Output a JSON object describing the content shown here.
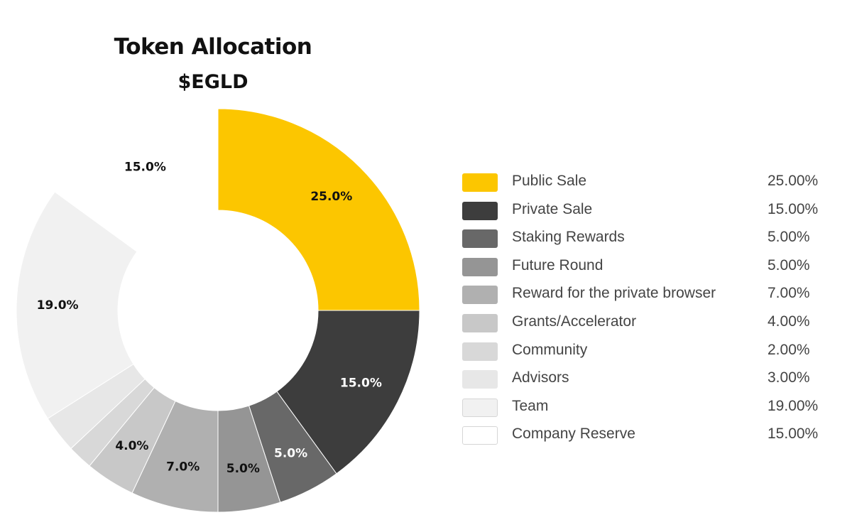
{
  "chart_data": {
    "type": "pie",
    "donut": true,
    "title": "Token Allocation",
    "subtitle": "$EGLD",
    "categories": [
      "Public Sale",
      "Private Sale",
      "Staking Rewards",
      "Future Round",
      "Reward for the private browser",
      "Grants/Accelerator",
      "Community",
      "Advisors",
      "Team",
      "Company Reserve"
    ],
    "values": [
      25,
      15,
      5,
      5,
      7,
      4,
      2,
      3,
      19,
      15
    ],
    "slice_labels": [
      "25.0%",
      "15.0%",
      "5.0%",
      "5.0%",
      "7.0%",
      "4.0%",
      "",
      "",
      "19.0%",
      "15.0%"
    ],
    "legend_values": [
      "25.00%",
      "15.00%",
      "5.00%",
      "5.00%",
      "7.00%",
      "4.00%",
      "2.00%",
      "3.00%",
      "19.00%",
      "15.00%"
    ],
    "colors": [
      "#FCC600",
      "#3D3D3D",
      "#686868",
      "#959595",
      "#B0B0B0",
      "#C8C8C8",
      "#D8D8D8",
      "#E7E7E7",
      "#F1F1F1",
      "#FFFFFF"
    ],
    "label_colors": [
      "#111111",
      "#FFFFFF",
      "#FFFFFF",
      "#111111",
      "#111111",
      "#111111",
      "#111111",
      "#111111",
      "#111111",
      "#111111"
    ],
    "legend_placement": "right"
  }
}
